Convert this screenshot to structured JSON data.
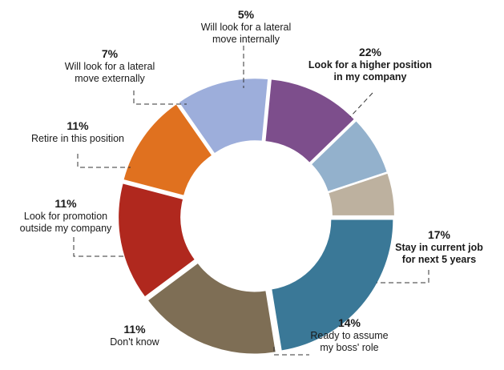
{
  "chart_data": {
    "type": "pie",
    "style": "donut",
    "slices": [
      {
        "label": "Look for a higher position in my company",
        "label_lines": [
          "Look for a higher position",
          "in my company"
        ],
        "pct_text": "22%",
        "value": 22,
        "color": "#3A7897",
        "bold": true
      },
      {
        "label": "Stay in current job for next 5 years",
        "label_lines": [
          "Stay in current job",
          "for next 5 years"
        ],
        "pct_text": "17%",
        "value": 17,
        "color": "#7E6E55",
        "bold": true
      },
      {
        "label": "Ready to assume my boss' role",
        "label_lines": [
          "Ready to assume",
          "my boss' role"
        ],
        "pct_text": "14%",
        "value": 14,
        "color": "#B0281E",
        "bold": false
      },
      {
        "label": "Don't know",
        "label_lines": [
          "Don't know"
        ],
        "pct_text": "11%",
        "value": 11,
        "color": "#E0711F",
        "bold": false
      },
      {
        "label": "Look for promotion outside my company",
        "label_lines": [
          "Look for promotion",
          "outside my company"
        ],
        "pct_text": "11%",
        "value": 11,
        "color": "#9DAEDB",
        "bold": false
      },
      {
        "label": "Retire in this position",
        "label_lines": [
          "Retire in this position"
        ],
        "pct_text": "11%",
        "value": 11,
        "color": "#7D4E8C",
        "bold": false
      },
      {
        "label": "Will look for a lateral move externally",
        "label_lines": [
          "Will look for a lateral",
          "move externally"
        ],
        "pct_text": "7%",
        "value": 7,
        "color": "#93B1CC",
        "bold": false
      },
      {
        "label": "Will look for a lateral move internally",
        "label_lines": [
          "Will look for a lateral",
          "move internally"
        ],
        "pct_text": "5%",
        "value": 5,
        "color": "#BDB19F",
        "bold": false
      }
    ]
  }
}
